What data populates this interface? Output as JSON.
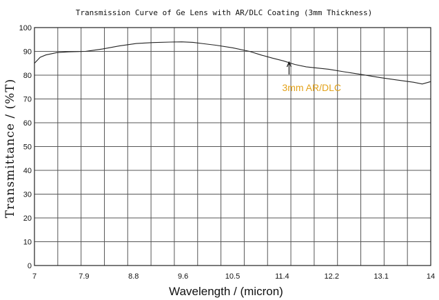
{
  "chart_data": {
    "type": "line",
    "title": "Transmission Curve of Ge Lens with AR/DLC Coating (3mm Thickness)",
    "xlabel": "Wavelength / (micron)",
    "ylabel": "Transmittance / (%T)",
    "xlim": [
      7,
      14
    ],
    "ylim": [
      0,
      100
    ],
    "x_ticks": [
      "7",
      "7.9",
      "8.8",
      "9.6",
      "10.5",
      "11.4",
      "12.2",
      "13.1",
      "14"
    ],
    "y_ticks": [
      "0",
      "10",
      "20",
      "30",
      "40",
      "50",
      "60",
      "70",
      "80",
      "90",
      "100"
    ],
    "grid": true,
    "series": [
      {
        "name": "3mm AR/DLC",
        "color": "#222222",
        "x": [
          7.0,
          7.1,
          7.2,
          7.4,
          7.6,
          7.9,
          8.2,
          8.5,
          8.8,
          9.1,
          9.4,
          9.6,
          9.8,
          10.0,
          10.2,
          10.5,
          10.8,
          11.0,
          11.2,
          11.4,
          11.6,
          11.8,
          12.0,
          12.2,
          12.5,
          12.8,
          13.1,
          13.4,
          13.7,
          13.85,
          14.0
        ],
        "y": [
          85.0,
          87.5,
          88.5,
          89.5,
          89.8,
          90.0,
          91.0,
          92.3,
          93.3,
          93.7,
          93.9,
          94.0,
          93.8,
          93.2,
          92.6,
          91.5,
          90.0,
          88.5,
          87.2,
          86.0,
          84.5,
          83.5,
          83.0,
          82.5,
          81.3,
          80.2,
          79.0,
          78.0,
          77.0,
          76.3,
          77.3
        ]
      }
    ],
    "annotations": [
      {
        "text": "3mm AR/DLC",
        "x": 11.4,
        "y": 85.5,
        "color": "#E3A21A"
      }
    ]
  }
}
